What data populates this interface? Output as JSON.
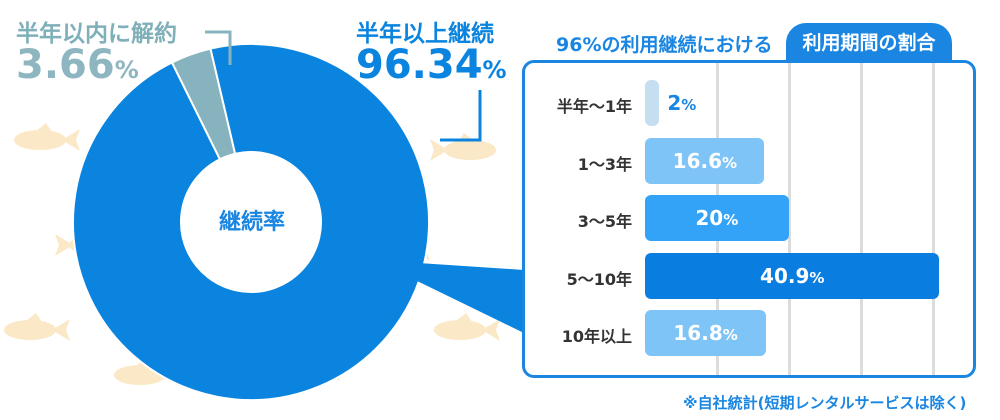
{
  "colors": {
    "continue": "#0a84df",
    "cancel": "#86b3bd",
    "bar_light": "#c6dff0",
    "bar_mid": "#7fc4f7",
    "bar_strong": "#33a3f7",
    "bar_dark": "#0a7ee0",
    "fish": "#fbe8c6"
  },
  "donut": {
    "center_label": "継続率",
    "cancel": {
      "title": "半年以内に解約",
      "value": "3.66",
      "unit": "%"
    },
    "continue": {
      "title": "半年以上継続",
      "value": "96.34",
      "unit": "%"
    }
  },
  "panel": {
    "title_left": "96%の利用継続における",
    "title_tab": "利用期間の割合",
    "footnote": "※自社統計(短期レンタルサービスは除く)"
  },
  "chart_data": [
    {
      "type": "pie",
      "title": "",
      "labels": [
        "半年以上継続",
        "半年以内に解約"
      ],
      "values": [
        96.34,
        3.66
      ],
      "unit": "%",
      "center_label": "継続率",
      "hole": true
    },
    {
      "type": "bar",
      "orientation": "horizontal",
      "title": "96%の利用継続における利用期間の割合",
      "categories": [
        "半年〜1年",
        "1〜3年",
        "3〜5年",
        "5〜10年",
        "10年以上"
      ],
      "values": [
        2,
        16.6,
        20,
        40.9,
        16.8
      ],
      "value_labels": [
        "2",
        "16.6",
        "20",
        "40.9",
        "16.8"
      ],
      "unit": "%",
      "xlim": [
        0,
        42
      ],
      "grid": true
    }
  ]
}
